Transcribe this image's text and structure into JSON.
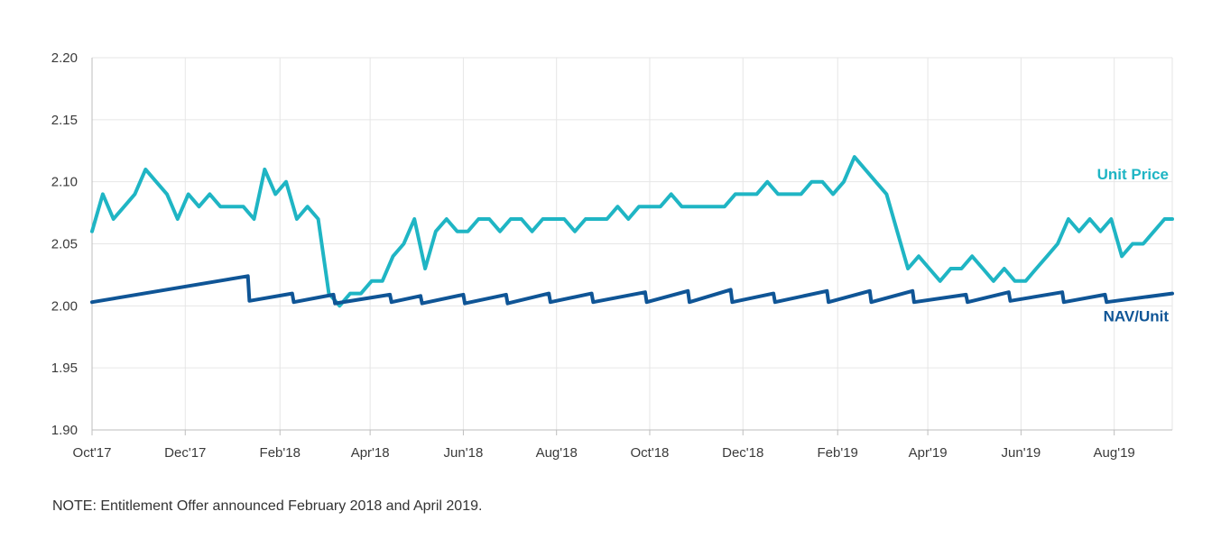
{
  "chart_data": {
    "type": "line",
    "ylim": [
      1.9,
      2.2
    ],
    "y_ticks": [
      "2.20",
      "2.15",
      "2.10",
      "2.05",
      "2.00",
      "1.95",
      "1.90"
    ],
    "x_ticks": [
      "Oct'17",
      "Dec'17",
      "Feb'18",
      "Apr'18",
      "Jun'18",
      "Aug'18",
      "Oct'18",
      "Dec'18",
      "Feb'19",
      "Apr'19",
      "Jun'19",
      "Aug'19"
    ],
    "x_range": [
      "2017-10-01",
      "2019-09-08"
    ],
    "grid": "vertical and horizontal",
    "legend": "labels at right end of lines",
    "series": [
      {
        "name": "Unit Price",
        "color": "#1fb5c4",
        "points": [
          [
            "2017-10-01",
            2.06
          ],
          [
            "2017-10-08",
            2.09
          ],
          [
            "2017-10-15",
            2.07
          ],
          [
            "2017-10-22",
            2.08
          ],
          [
            "2017-10-29",
            2.09
          ],
          [
            "2017-11-05",
            2.11
          ],
          [
            "2017-11-12",
            2.1
          ],
          [
            "2017-11-19",
            2.09
          ],
          [
            "2017-11-26",
            2.07
          ],
          [
            "2017-12-03",
            2.09
          ],
          [
            "2017-12-10",
            2.08
          ],
          [
            "2017-12-17",
            2.09
          ],
          [
            "2017-12-24",
            2.08
          ],
          [
            "2018-01-01",
            2.08
          ],
          [
            "2018-01-08",
            2.08
          ],
          [
            "2018-01-15",
            2.07
          ],
          [
            "2018-01-22",
            2.11
          ],
          [
            "2018-01-29",
            2.09
          ],
          [
            "2018-02-05",
            2.1
          ],
          [
            "2018-02-12",
            2.07
          ],
          [
            "2018-02-19",
            2.08
          ],
          [
            "2018-02-26",
            2.07
          ],
          [
            "2018-03-05",
            2.01
          ],
          [
            "2018-03-12",
            2.0
          ],
          [
            "2018-03-19",
            2.01
          ],
          [
            "2018-03-26",
            2.01
          ],
          [
            "2018-04-02",
            2.02
          ],
          [
            "2018-04-09",
            2.02
          ],
          [
            "2018-04-16",
            2.04
          ],
          [
            "2018-04-23",
            2.05
          ],
          [
            "2018-04-30",
            2.07
          ],
          [
            "2018-05-07",
            2.03
          ],
          [
            "2018-05-14",
            2.06
          ],
          [
            "2018-05-21",
            2.07
          ],
          [
            "2018-05-28",
            2.06
          ],
          [
            "2018-06-04",
            2.06
          ],
          [
            "2018-06-11",
            2.07
          ],
          [
            "2018-06-18",
            2.07
          ],
          [
            "2018-06-25",
            2.06
          ],
          [
            "2018-07-02",
            2.07
          ],
          [
            "2018-07-09",
            2.07
          ],
          [
            "2018-07-16",
            2.06
          ],
          [
            "2018-07-23",
            2.07
          ],
          [
            "2018-07-30",
            2.07
          ],
          [
            "2018-08-06",
            2.07
          ],
          [
            "2018-08-13",
            2.06
          ],
          [
            "2018-08-20",
            2.07
          ],
          [
            "2018-08-27",
            2.07
          ],
          [
            "2018-09-03",
            2.07
          ],
          [
            "2018-09-10",
            2.08
          ],
          [
            "2018-09-17",
            2.07
          ],
          [
            "2018-09-24",
            2.08
          ],
          [
            "2018-10-01",
            2.08
          ],
          [
            "2018-10-08",
            2.08
          ],
          [
            "2018-10-15",
            2.09
          ],
          [
            "2018-10-22",
            2.08
          ],
          [
            "2018-10-29",
            2.08
          ],
          [
            "2018-11-05",
            2.08
          ],
          [
            "2018-11-12",
            2.08
          ],
          [
            "2018-11-19",
            2.08
          ],
          [
            "2018-11-26",
            2.09
          ],
          [
            "2018-12-03",
            2.09
          ],
          [
            "2018-12-10",
            2.09
          ],
          [
            "2018-12-17",
            2.1
          ],
          [
            "2018-12-24",
            2.09
          ],
          [
            "2019-01-01",
            2.09
          ],
          [
            "2019-01-08",
            2.09
          ],
          [
            "2019-01-15",
            2.1
          ],
          [
            "2019-01-22",
            2.1
          ],
          [
            "2019-01-29",
            2.09
          ],
          [
            "2019-02-05",
            2.1
          ],
          [
            "2019-02-12",
            2.12
          ],
          [
            "2019-02-19",
            2.11
          ],
          [
            "2019-02-26",
            2.1
          ],
          [
            "2019-03-05",
            2.09
          ],
          [
            "2019-03-12",
            2.06
          ],
          [
            "2019-03-19",
            2.03
          ],
          [
            "2019-03-26",
            2.04
          ],
          [
            "2019-04-02",
            2.03
          ],
          [
            "2019-04-09",
            2.02
          ],
          [
            "2019-04-16",
            2.03
          ],
          [
            "2019-04-23",
            2.03
          ],
          [
            "2019-04-30",
            2.04
          ],
          [
            "2019-05-07",
            2.03
          ],
          [
            "2019-05-14",
            2.02
          ],
          [
            "2019-05-21",
            2.03
          ],
          [
            "2019-05-28",
            2.02
          ],
          [
            "2019-06-04",
            2.02
          ],
          [
            "2019-06-11",
            2.03
          ],
          [
            "2019-06-18",
            2.04
          ],
          [
            "2019-06-25",
            2.05
          ],
          [
            "2019-07-02",
            2.07
          ],
          [
            "2019-07-09",
            2.06
          ],
          [
            "2019-07-16",
            2.07
          ],
          [
            "2019-07-23",
            2.06
          ],
          [
            "2019-07-30",
            2.07
          ],
          [
            "2019-08-06",
            2.04
          ],
          [
            "2019-08-13",
            2.05
          ],
          [
            "2019-08-20",
            2.05
          ],
          [
            "2019-08-27",
            2.06
          ],
          [
            "2019-09-03",
            2.07
          ],
          [
            "2019-09-08",
            2.07
          ]
        ]
      },
      {
        "name": "NAV/Unit",
        "color": "#0f5596",
        "points": [
          [
            "2017-10-01",
            2.003
          ],
          [
            "2018-01-11",
            2.024
          ],
          [
            "2018-01-12",
            2.004
          ],
          [
            "2018-02-09",
            2.01
          ],
          [
            "2018-02-10",
            2.003
          ],
          [
            "2018-03-08",
            2.009
          ],
          [
            "2018-03-09",
            2.002
          ],
          [
            "2018-04-14",
            2.009
          ],
          [
            "2018-04-15",
            2.003
          ],
          [
            "2018-05-04",
            2.008
          ],
          [
            "2018-05-05",
            2.002
          ],
          [
            "2018-06-01",
            2.009
          ],
          [
            "2018-06-02",
            2.002
          ],
          [
            "2018-06-29",
            2.009
          ],
          [
            "2018-06-30",
            2.002
          ],
          [
            "2018-07-27",
            2.01
          ],
          [
            "2018-07-28",
            2.003
          ],
          [
            "2018-08-24",
            2.01
          ],
          [
            "2018-08-25",
            2.003
          ],
          [
            "2018-09-28",
            2.011
          ],
          [
            "2018-09-29",
            2.003
          ],
          [
            "2018-10-26",
            2.012
          ],
          [
            "2018-10-27",
            2.003
          ],
          [
            "2018-11-23",
            2.013
          ],
          [
            "2018-11-24",
            2.003
          ],
          [
            "2018-12-21",
            2.01
          ],
          [
            "2018-12-22",
            2.003
          ],
          [
            "2019-01-25",
            2.012
          ],
          [
            "2019-01-26",
            2.003
          ],
          [
            "2019-02-22",
            2.012
          ],
          [
            "2019-02-23",
            2.003
          ],
          [
            "2019-03-22",
            2.012
          ],
          [
            "2019-03-23",
            2.003
          ],
          [
            "2019-04-26",
            2.009
          ],
          [
            "2019-04-27",
            2.003
          ],
          [
            "2019-05-24",
            2.011
          ],
          [
            "2019-05-25",
            2.004
          ],
          [
            "2019-06-28",
            2.011
          ],
          [
            "2019-06-29",
            2.003
          ],
          [
            "2019-07-26",
            2.009
          ],
          [
            "2019-07-27",
            2.003
          ],
          [
            "2019-09-08",
            2.01
          ]
        ]
      }
    ]
  },
  "note": "NOTE: Entitlement Offer announced February 2018 and April 2019."
}
